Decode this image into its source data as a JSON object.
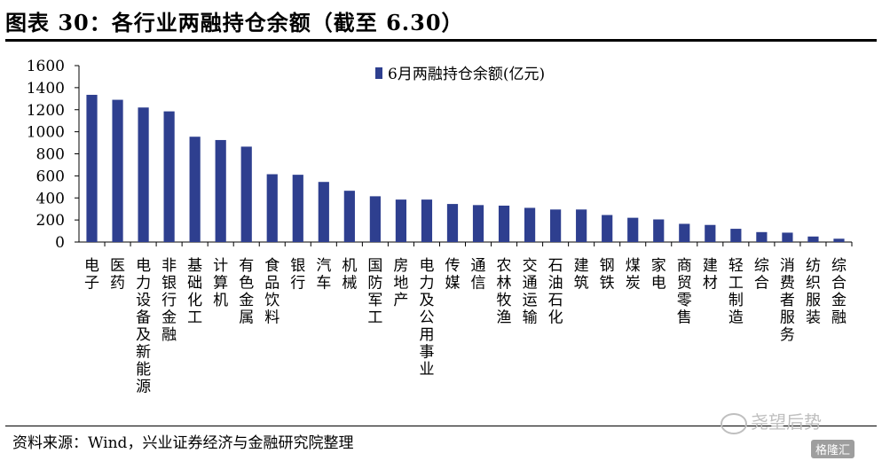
{
  "header": {
    "title": "图表 30：各行业两融持仓余额（截至 6.30）"
  },
  "footer": {
    "source": "资料来源：Wind，兴业证券经济与金融研究院整理"
  },
  "watermarks": {
    "primary": "尧望后势",
    "secondary": "格隆汇"
  },
  "colors": {
    "bar": "#2E3F8F",
    "axis": "#000000"
  },
  "chart_data": {
    "type": "bar",
    "categories": [
      "电子",
      "医药",
      "电力设备及新能源",
      "非银行金融",
      "基础化工",
      "计算机",
      "有色金属",
      "食品饮料",
      "银行",
      "汽车",
      "机械",
      "国防军工",
      "房地产",
      "电力及公用事业",
      "传媒",
      "通信",
      "农林牧渔",
      "交通运输",
      "石油石化",
      "建筑",
      "钢铁",
      "煤炭",
      "家电",
      "商贸零售",
      "建材",
      "轻工制造",
      "综合",
      "消费者服务",
      "纺织服装",
      "综合金融"
    ],
    "series": [
      {
        "name": "6月两融持仓余额(亿元)",
        "values": [
          1335,
          1290,
          1220,
          1185,
          955,
          925,
          865,
          615,
          610,
          545,
          465,
          415,
          385,
          385,
          345,
          335,
          330,
          310,
          295,
          295,
          245,
          220,
          205,
          165,
          155,
          120,
          90,
          85,
          50,
          30
        ]
      }
    ],
    "yticks": [
      0,
      200,
      400,
      600,
      800,
      1000,
      1200,
      1400,
      1600
    ],
    "ylim": [
      0,
      1600
    ],
    "legend": "top-center",
    "grid": false
  }
}
